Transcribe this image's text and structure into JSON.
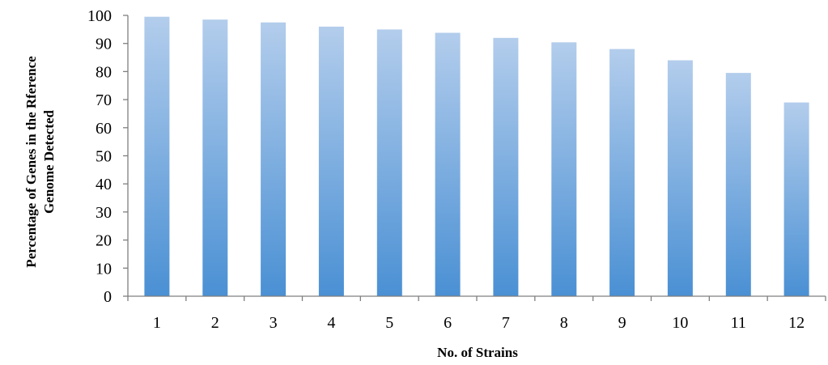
{
  "chart_data": {
    "type": "bar",
    "title": "",
    "xlabel": "No. of Strains",
    "ylabel_lines": [
      "Percentage of Genes in the Rference",
      "Genome Detected"
    ],
    "categories": [
      "1",
      "2",
      "3",
      "4",
      "5",
      "6",
      "7",
      "8",
      "9",
      "10",
      "11",
      "12"
    ],
    "values": [
      99.5,
      98.5,
      97.5,
      96,
      95,
      93.8,
      92,
      90.4,
      88,
      84,
      79.5,
      69
    ],
    "ylim": [
      0,
      100
    ],
    "yticks": [
      "0",
      "10",
      "20",
      "30",
      "40",
      "50",
      "60",
      "70",
      "80",
      "90",
      "100"
    ],
    "grid": false,
    "legend": "none",
    "colors": {
      "bar_top": "#b3cdec",
      "bar_bottom": "#4a90d4",
      "axis": "#7f7f7f"
    }
  }
}
